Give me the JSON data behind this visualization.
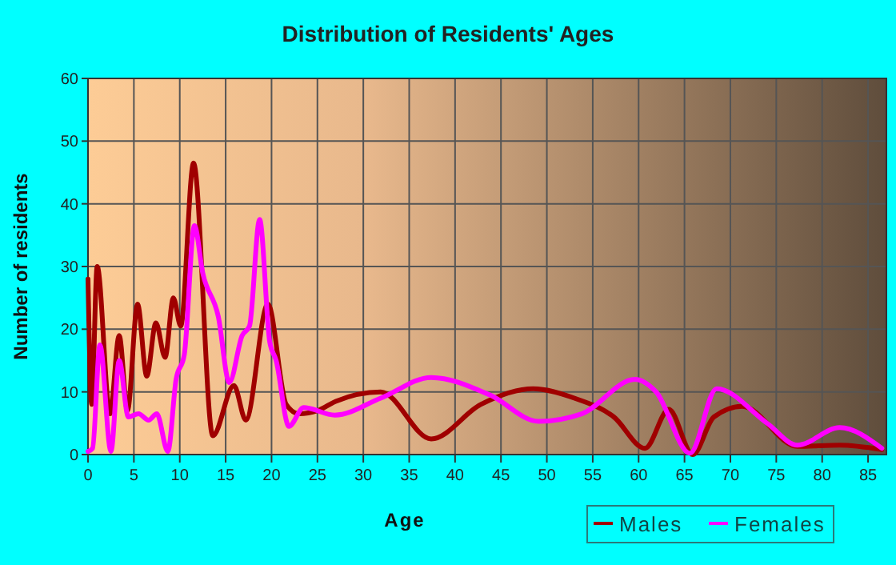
{
  "chart_data": {
    "type": "line",
    "title": "Distribution of Residents' Ages",
    "xlabel": "Age",
    "ylabel": "Number of residents",
    "xlim": [
      0,
      87
    ],
    "xticks": [
      0,
      5,
      10,
      15,
      20,
      25,
      30,
      35,
      40,
      45,
      50,
      55,
      60,
      65,
      70,
      75,
      80,
      85
    ],
    "ylim": [
      0,
      60
    ],
    "yticks": [
      0,
      10,
      20,
      30,
      40,
      50,
      60
    ],
    "grid": true,
    "legend": "bottom right",
    "line_style": "solid",
    "marker": "none",
    "series": [
      {
        "name": "Males",
        "color": "#a00000",
        "x": [
          0,
          0.4,
          1,
          2.4,
          3.4,
          4.3,
          5.4,
          6.4,
          7.4,
          8.4,
          9.3,
          10.1,
          11.5,
          13.6,
          15.9,
          17.2,
          19.6,
          21.6,
          23,
          25,
          27,
          31.9,
          37.4,
          42.8,
          48.5,
          53,
          57.3,
          60.7,
          63.3,
          65.9,
          68.2,
          71.3,
          77.3,
          81.9,
          86.5
        ],
        "values": [
          28,
          8,
          30,
          6.5,
          19,
          7,
          24,
          12.5,
          21,
          15.5,
          25,
          20.5,
          46.5,
          3,
          11,
          5.5,
          24,
          8,
          6.5,
          7,
          8.5,
          10,
          2.5,
          8,
          10.5,
          9,
          6,
          1,
          7.2,
          0,
          6,
          7.7,
          1.3,
          1.5,
          0.8
        ]
      },
      {
        "name": "Females",
        "color": "#ff00ff",
        "x": [
          0,
          0.5,
          1.3,
          2.5,
          3.4,
          4.4,
          5.5,
          6.6,
          7.5,
          8.7,
          9.6,
          10.5,
          11.6,
          12.5,
          14.2,
          15.4,
          16.8,
          17.6,
          18.7,
          19.8,
          20.5,
          21.9,
          23.5,
          26.9,
          31.9,
          37.4,
          43.8,
          49.1,
          53.8,
          59.6,
          61.9,
          65.6,
          68.5,
          74,
          77.3,
          81.9,
          86.5
        ],
        "values": [
          0.5,
          1,
          17.5,
          0.5,
          15,
          6,
          6.5,
          5.5,
          6.5,
          0.5,
          12,
          16,
          36.5,
          29,
          22,
          11.5,
          19,
          20.5,
          37.5,
          18,
          15,
          4.5,
          7.5,
          6.3,
          9,
          12.3,
          9.5,
          5.3,
          6.5,
          12,
          10,
          0.2,
          10.5,
          5,
          1.5,
          4.3,
          1
        ]
      }
    ]
  }
}
